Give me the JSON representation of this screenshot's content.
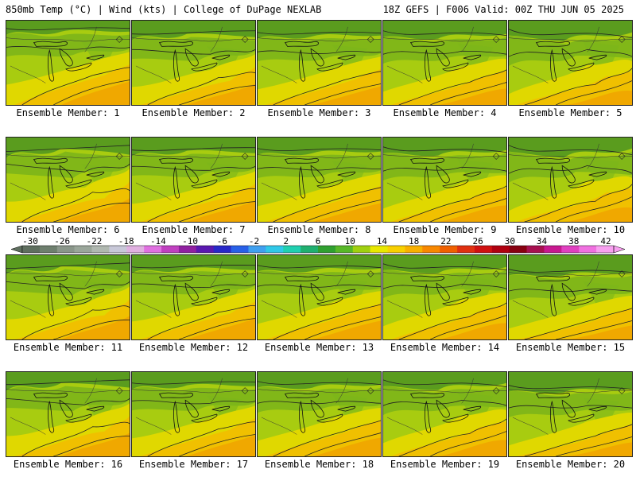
{
  "header": {
    "left": "850mb Temp (°C) | Wind (kts) | College of DuPage NEXLAB",
    "right": "18Z GEFS | F006 Valid: 00Z THU JUN 05 2025"
  },
  "panels": [
    {
      "label": "Ensemble Member: 1"
    },
    {
      "label": "Ensemble Member: 2"
    },
    {
      "label": "Ensemble Member: 3"
    },
    {
      "label": "Ensemble Member: 4"
    },
    {
      "label": "Ensemble Member: 5"
    },
    {
      "label": "Ensemble Member: 6"
    },
    {
      "label": "Ensemble Member: 7"
    },
    {
      "label": "Ensemble Member: 8"
    },
    {
      "label": "Ensemble Member: 9"
    },
    {
      "label": "Ensemble Member: 10"
    },
    {
      "label": "Ensemble Member: 11"
    },
    {
      "label": "Ensemble Member: 12"
    },
    {
      "label": "Ensemble Member: 13"
    },
    {
      "label": "Ensemble Member: 14"
    },
    {
      "label": "Ensemble Member: 15"
    },
    {
      "label": "Ensemble Member: 16"
    },
    {
      "label": "Ensemble Member: 17"
    },
    {
      "label": "Ensemble Member: 18"
    },
    {
      "label": "Ensemble Member: 19"
    },
    {
      "label": "Ensemble Member: 20"
    }
  ],
  "colorbar": {
    "ticks": [
      "-30",
      "-26",
      "-22",
      "-18",
      "-14",
      "-10",
      "-6",
      "-2",
      "2",
      "6",
      "10",
      "14",
      "18",
      "22",
      "26",
      "30",
      "34",
      "38",
      "42"
    ],
    "colors": [
      "#5f6f5f",
      "#6e7f6e",
      "#8a968a",
      "#9aa69a",
      "#b0b8b0",
      "#c8c8d8",
      "#e0b0e0",
      "#e070e0",
      "#c040c0",
      "#9020a0",
      "#5a18b0",
      "#2828c8",
      "#2860e8",
      "#40a0f0",
      "#30c8e8",
      "#20d0b0",
      "#20b070",
      "#30a030",
      "#58b828",
      "#a0d010",
      "#e8e800",
      "#f8d000",
      "#f8b000",
      "#f88800",
      "#f06000",
      "#e03010",
      "#d01010",
      "#b00010",
      "#880010",
      "#a81050",
      "#c81890",
      "#e040c0",
      "#f070e0",
      "#f8a0f0"
    ]
  },
  "map_colors": {
    "dark_green": "#5a9c1e",
    "green": "#7cb51a",
    "yellow_green": "#a8cc10",
    "yellow": "#e0d800",
    "gold": "#f0c000",
    "orange": "#f0a800"
  }
}
